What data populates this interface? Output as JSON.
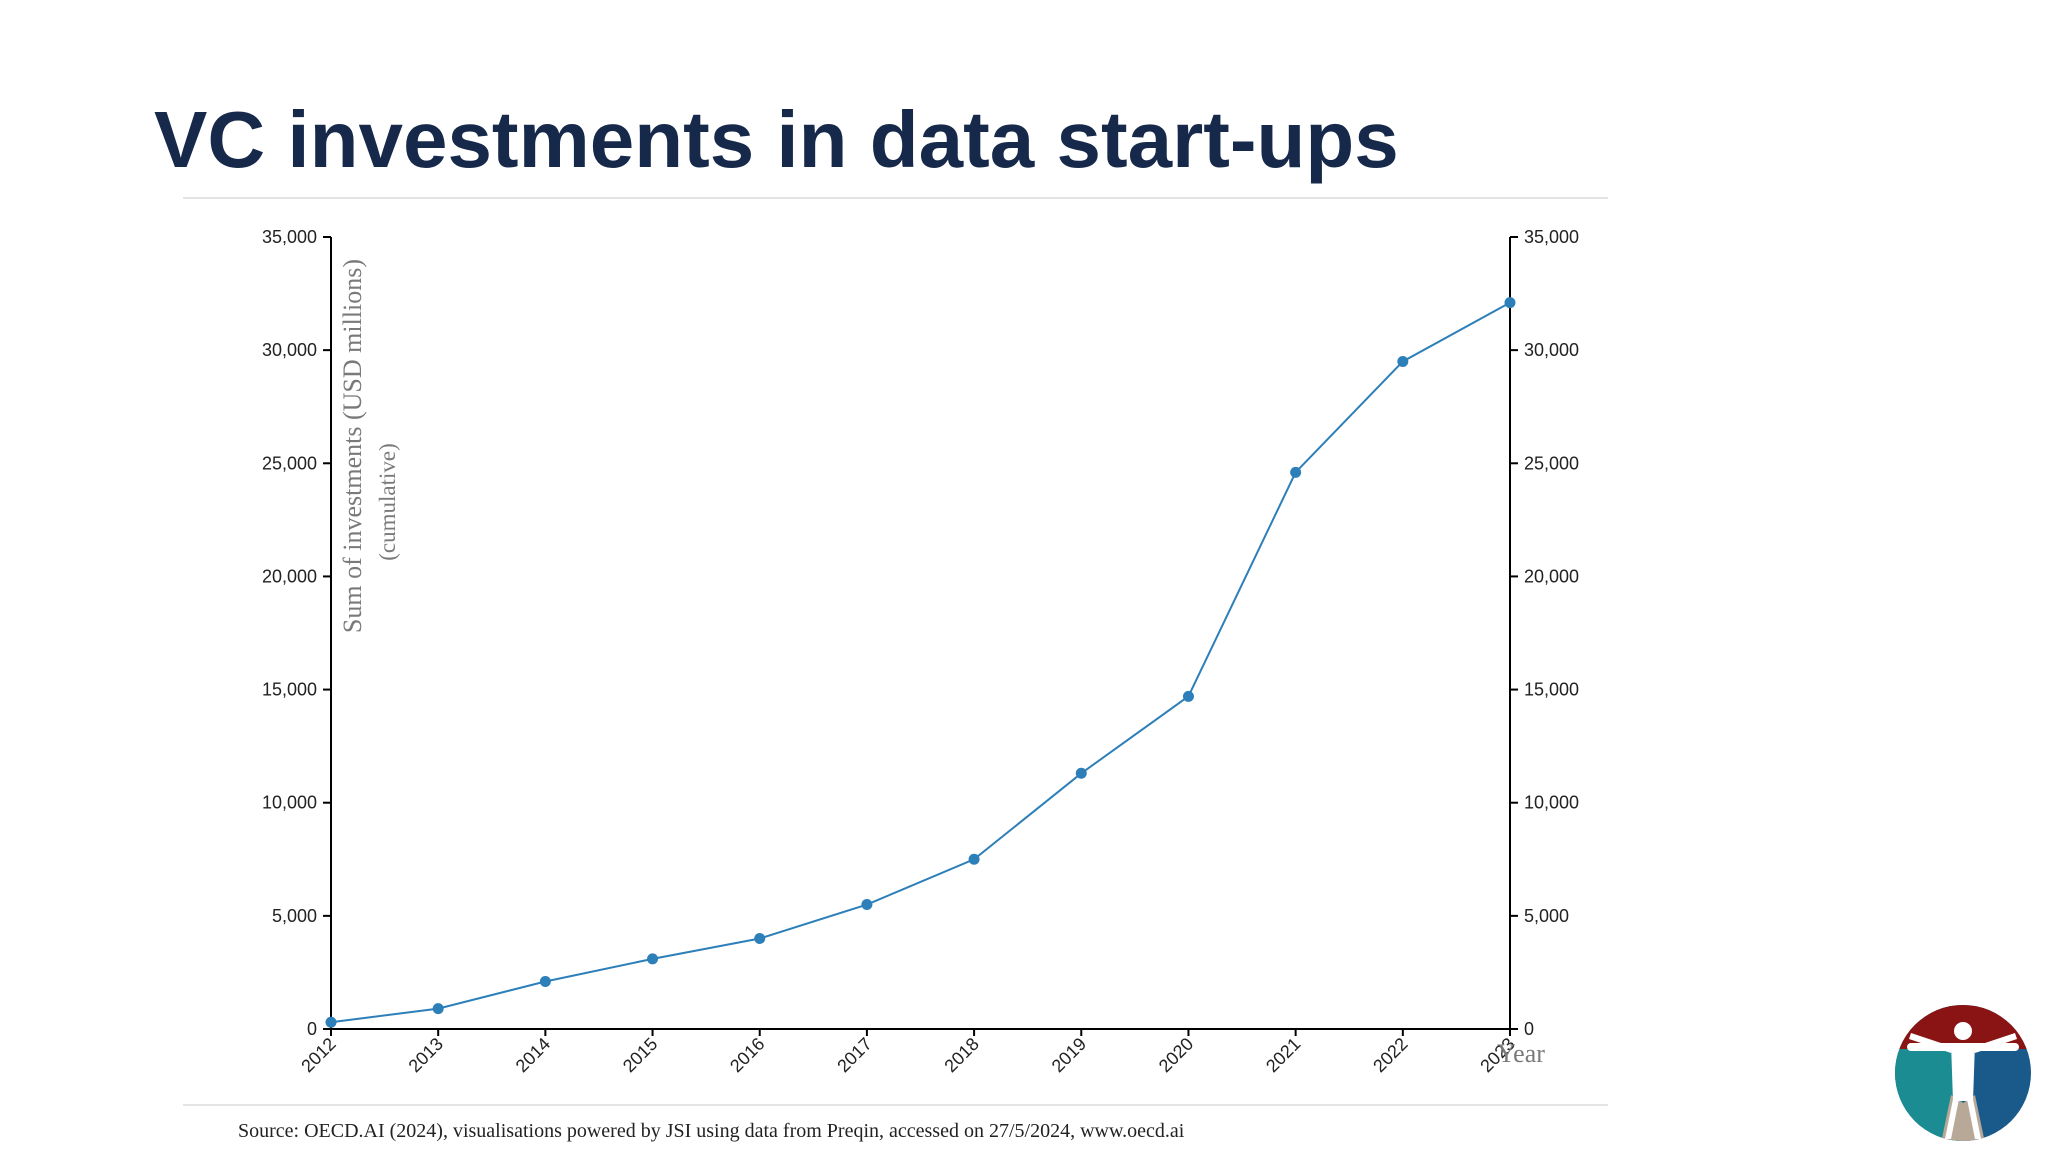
{
  "slide": {
    "title": "VC investments in data start-ups",
    "source": "Source: OECD.AI (2024), visualisations powered by JSI using data from Preqin, accessed on 27/5/2024, www.oecd.ai",
    "logo_icon": "vitruvian-man-logo-icon"
  },
  "colors": {
    "title": "#17294a",
    "series": "#2c7fb8",
    "axis": "#000000",
    "axis_title": "#7a7a7a",
    "logo_red": "#8a1414",
    "logo_teal": "#1a8c92",
    "logo_blue": "#1a5a8a",
    "logo_tan": "#b8a898"
  },
  "chart_data": {
    "type": "line",
    "title": "VC investments in data start-ups",
    "xlabel": "Year",
    "ylabel": "Sum of investments (USD millions)",
    "ylabel_sub": "(cumulative)",
    "categories": [
      "2012",
      "2013",
      "2014",
      "2015",
      "2016",
      "2017",
      "2018",
      "2019",
      "2020",
      "2021",
      "2022",
      "2023"
    ],
    "series": [
      {
        "name": "Sum of investments (USD millions) (cumulative)",
        "values": [
          300,
          900,
          2100,
          3100,
          4000,
          5500,
          7500,
          11300,
          14700,
          24600,
          29500,
          32100
        ]
      }
    ],
    "ylim": [
      0,
      35000
    ],
    "yticks": [
      0,
      5000,
      10000,
      15000,
      20000,
      25000,
      30000,
      35000
    ],
    "ytick_labels": [
      "0",
      "5,000",
      "10,000",
      "15,000",
      "20,000",
      "25,000",
      "30,000",
      "35,000"
    ],
    "grid": false,
    "right_axis": true,
    "markers": true
  }
}
